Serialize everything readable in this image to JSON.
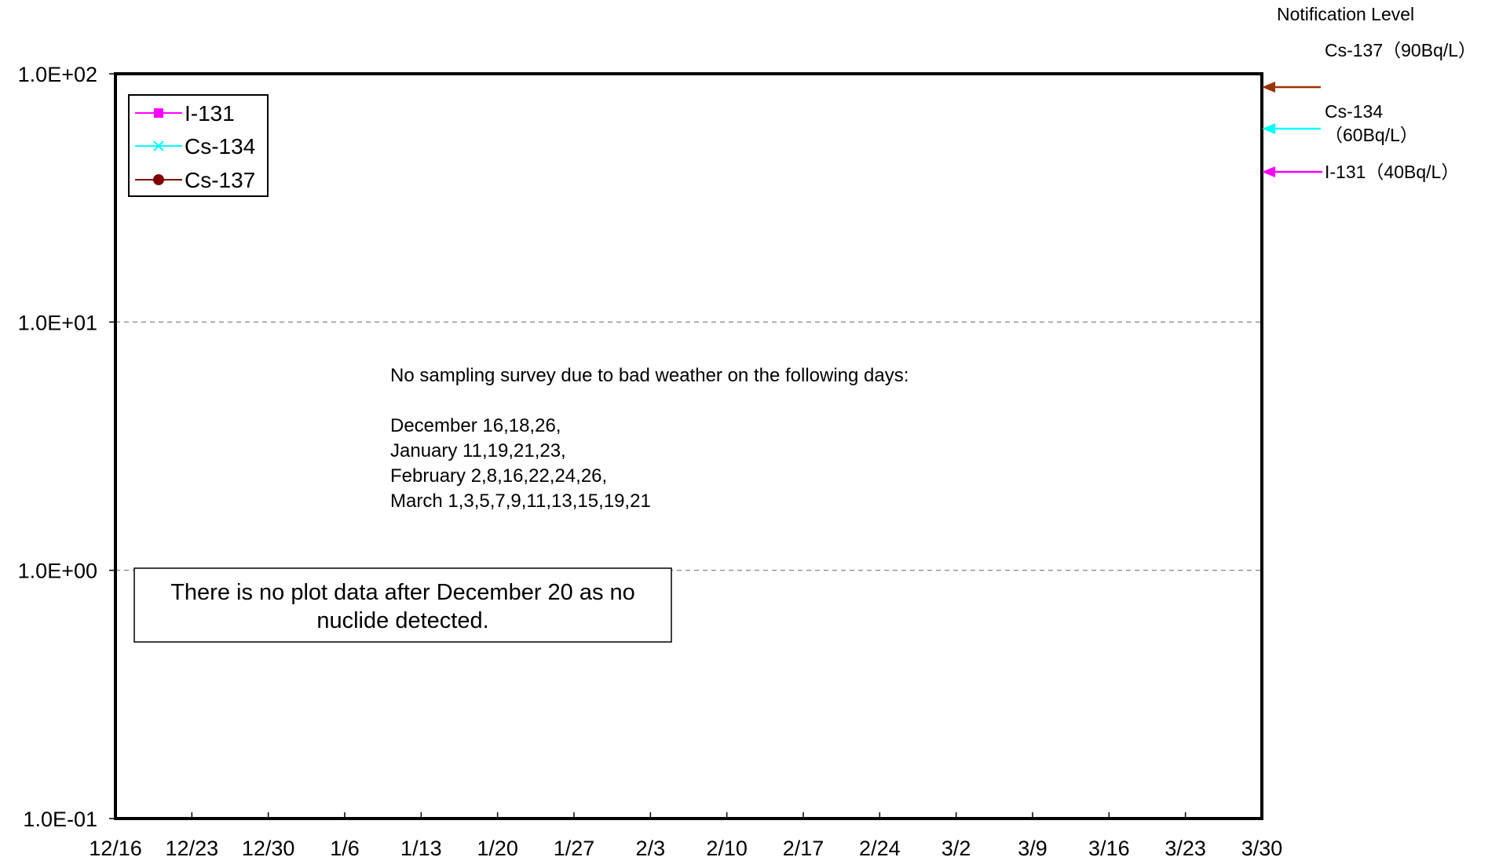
{
  "chart_data": {
    "type": "line",
    "title": "",
    "xlabel": "",
    "ylabel": "",
    "y_scale": "log",
    "ylim": [
      0.1,
      100
    ],
    "y_ticks": [
      "1.0E-01",
      "1.0E+00",
      "1.0E+01",
      "1.0E+02"
    ],
    "x_ticks": [
      "12/16",
      "12/23",
      "12/30",
      "1/6",
      "1/13",
      "1/20",
      "1/27",
      "2/3",
      "2/10",
      "2/17",
      "2/24",
      "3/2",
      "3/9",
      "3/16",
      "3/23",
      "3/30"
    ],
    "grid": "horizontal dashed",
    "legend_position": "top-left",
    "series": [
      {
        "name": "I-131",
        "color": "#ff00ff",
        "marker": "square",
        "values": []
      },
      {
        "name": "Cs-134",
        "color": "#00ffff",
        "marker": "x",
        "values": []
      },
      {
        "name": "Cs-137",
        "color": "#800000",
        "marker": "circle",
        "values": []
      }
    ],
    "notification_level": {
      "heading": "Notification Level",
      "levels": [
        {
          "lines": [
            "Cs-137（90Bq/L）"
          ],
          "value": 90,
          "color": "#993300"
        },
        {
          "lines": [
            "Cs-134",
            "（60Bq/L）"
          ],
          "value": 60,
          "color": "#00ffff"
        },
        {
          "lines": [
            "I-131（40Bq/L）"
          ],
          "value": 40,
          "color": "#ff00ff"
        }
      ]
    },
    "annotations": {
      "weather_note": [
        "No sampling survey due to bad weather on the following days:",
        "",
        "December 16,18,26,",
        "January 11,19,21,23,",
        "February 2,8,16,22,24,26,",
        "March 1,3,5,7,9,11,13,15,19,21"
      ],
      "no_data_box": [
        "There is no plot data after December 20 as no",
        "nuclide detected."
      ]
    }
  }
}
